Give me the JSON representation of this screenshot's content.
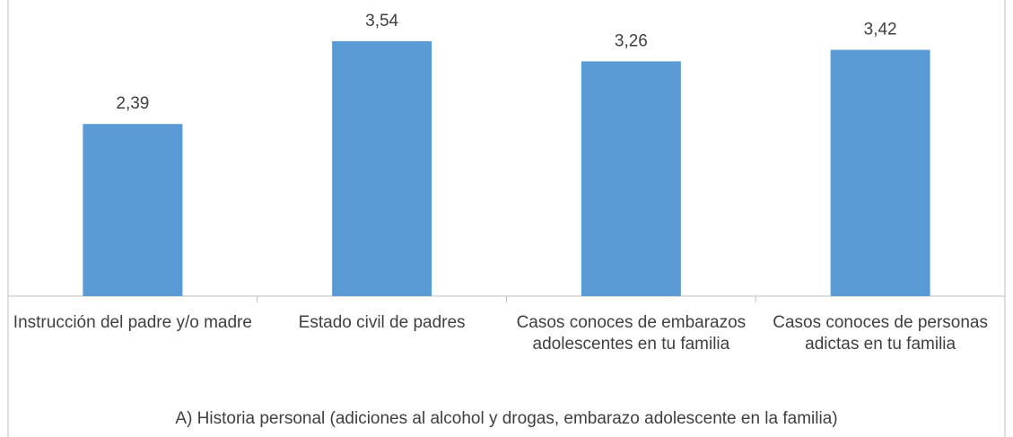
{
  "chart_data": {
    "type": "bar",
    "categories": [
      "Instrucción del padre y/o madre",
      "Estado civil de padres",
      "Casos conoces de embarazos adolescentes en tu familia",
      "Casos conoces de personas adictas en tu familia"
    ],
    "values": [
      2.39,
      3.54,
      3.26,
      3.42
    ],
    "data_labels": [
      "2,39",
      "3,54",
      "3,26",
      "3,42"
    ],
    "ylim": [
      0,
      4
    ],
    "grid": false,
    "legend": "none",
    "title": "",
    "xlabel": "A) Historia personal (adiciones al alcohol y drogas, embarazo adolescente en la familia)",
    "ylabel": "",
    "bar_color": "#5B9BD5",
    "axis_color": "#BFBFBF",
    "text_color": "#404040"
  }
}
